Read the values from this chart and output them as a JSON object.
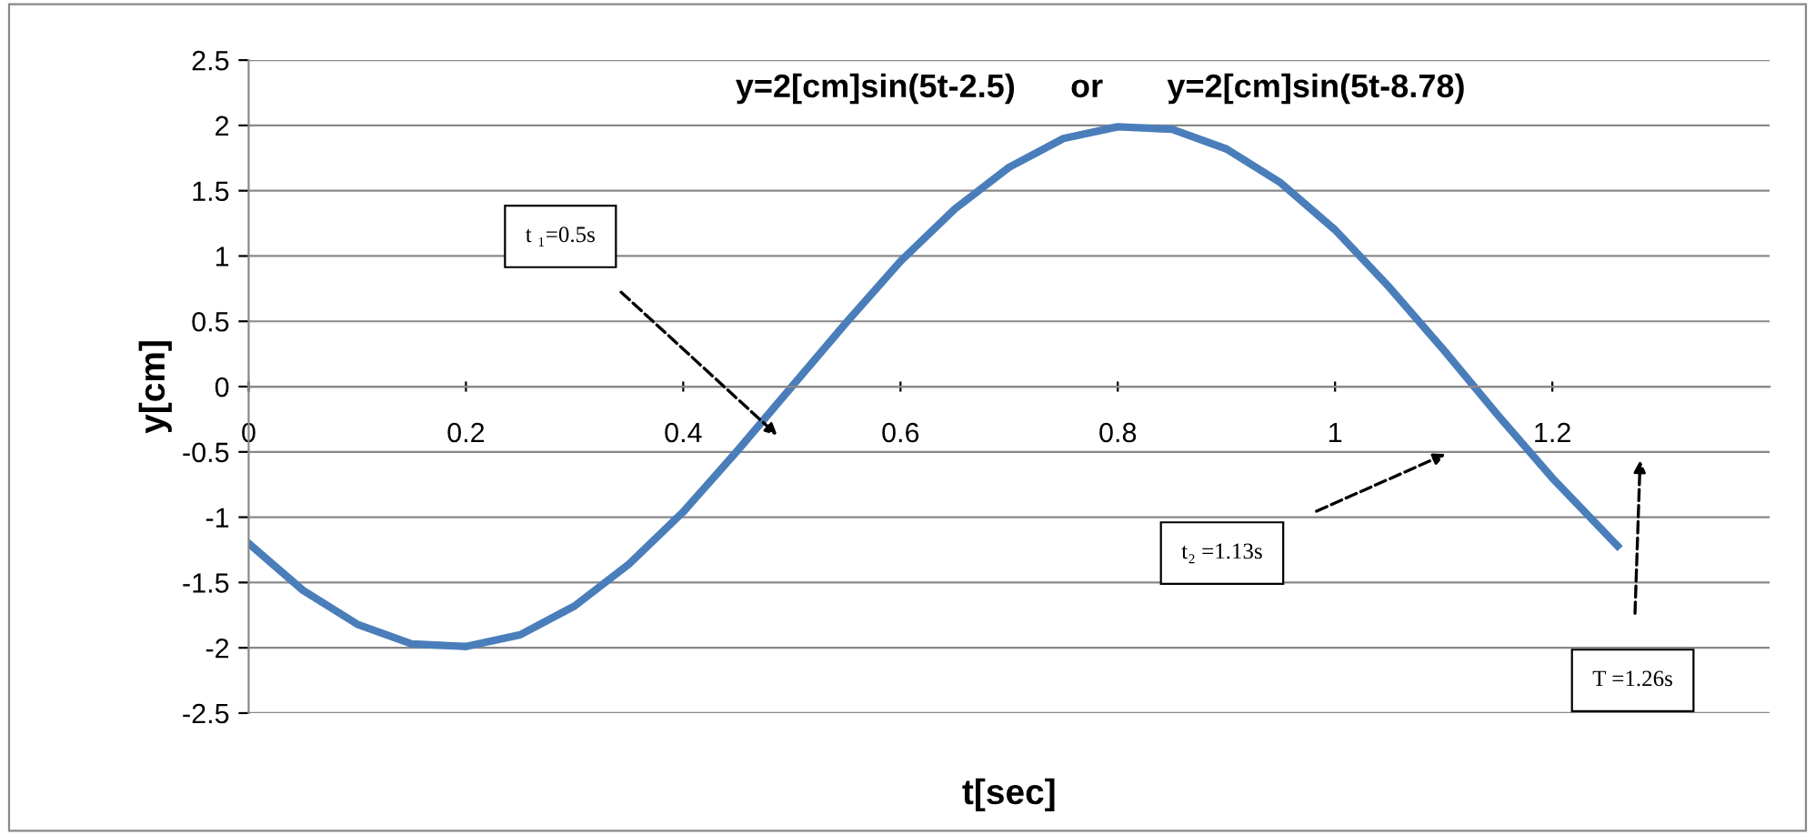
{
  "chart_data": {
    "type": "line",
    "title": "y=2[cm]sin(5t-2.5)      or       y=2[cm]sin(5t-8.78)",
    "xlabel": "t[sec]",
    "ylabel": "y[cm]",
    "x": [
      0,
      0.05,
      0.1,
      0.15,
      0.2,
      0.25,
      0.3,
      0.35,
      0.4,
      0.45,
      0.5,
      0.55,
      0.6,
      0.65,
      0.7,
      0.75,
      0.8,
      0.85,
      0.9,
      0.95,
      1.0,
      1.05,
      1.1,
      1.15,
      1.2,
      1.26
    ],
    "series": [
      {
        "color": "#4a7ebb",
        "values": [
          -1.2,
          -1.56,
          -1.82,
          -1.97,
          -1.99,
          -1.9,
          -1.68,
          -1.36,
          -0.96,
          -0.49,
          0,
          0.49,
          0.96,
          1.36,
          1.68,
          1.9,
          1.99,
          1.97,
          1.82,
          1.56,
          1.2,
          0.76,
          0.28,
          -0.22,
          -0.7,
          -1.22
        ]
      }
    ],
    "xlim": [
      0,
      1.4
    ],
    "xticks": [
      0,
      0.2,
      0.4,
      0.6,
      0.8,
      1,
      1.2
    ],
    "ylim": [
      -2.5,
      2.5
    ],
    "yticks": [
      -2.5,
      -2,
      -1.5,
      -1,
      -0.5,
      0,
      0.5,
      1,
      1.5,
      2,
      2.5
    ],
    "grid": "y",
    "legend": false,
    "marker": "none",
    "line_style": "solid",
    "annotations": [
      "t ₁=0.5s",
      "t₂ =1.13s",
      "T =1.26s"
    ]
  }
}
